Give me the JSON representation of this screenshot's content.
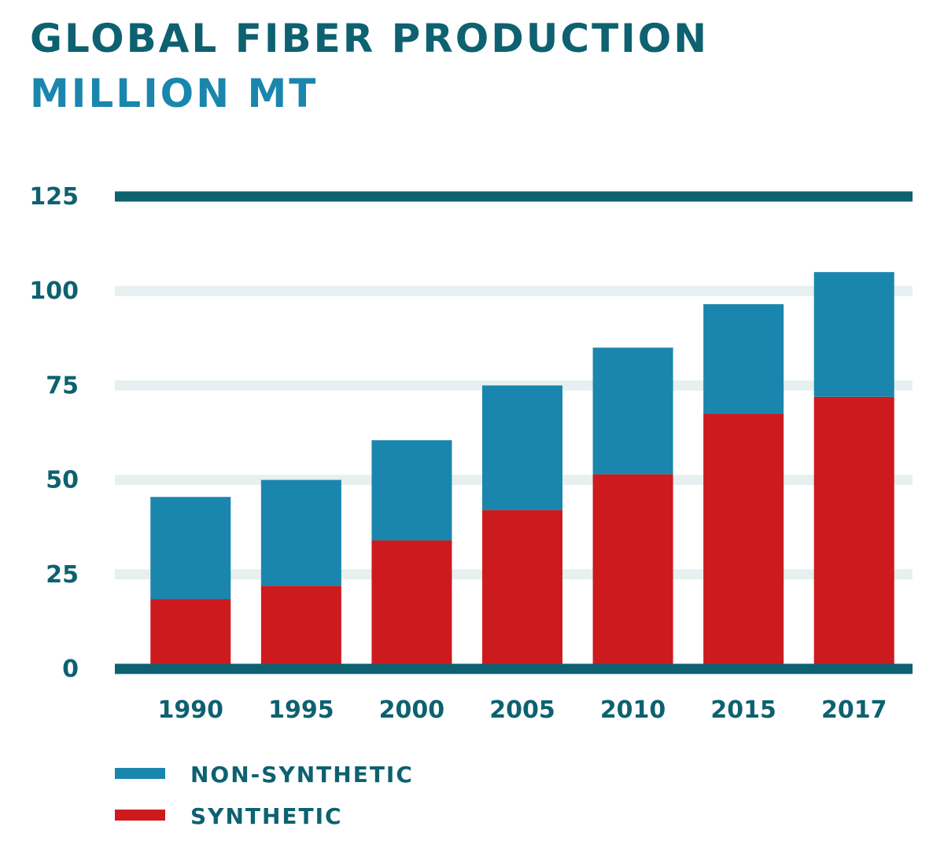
{
  "header": {
    "title": "GLOBAL FIBER PRODUCTION",
    "subtitle": "MILLION MT"
  },
  "colors": {
    "title": "#0d6170",
    "subtitle": "#1a86ad",
    "axis": "#0d6170",
    "grid": "#e6f0f0",
    "non_synthetic": "#1a86ad",
    "synthetic": "#cc1a1e"
  },
  "chart_data": {
    "type": "bar",
    "stacked": true,
    "categories": [
      "1990",
      "1995",
      "2000",
      "2005",
      "2010",
      "2015",
      "2017"
    ],
    "series": [
      {
        "name": "SYNTHETIC",
        "values": [
          18.5,
          22,
          34,
          42,
          51.5,
          67.5,
          72
        ]
      },
      {
        "name": "NON-SYNTHETIC",
        "values": [
          27,
          28,
          26.5,
          33,
          33.5,
          29,
          33
        ]
      }
    ],
    "yticks": [
      "0",
      "25",
      "50",
      "75",
      "100",
      "125"
    ],
    "ylim": [
      0,
      125
    ],
    "grid": true,
    "legend": "bottom-left"
  }
}
